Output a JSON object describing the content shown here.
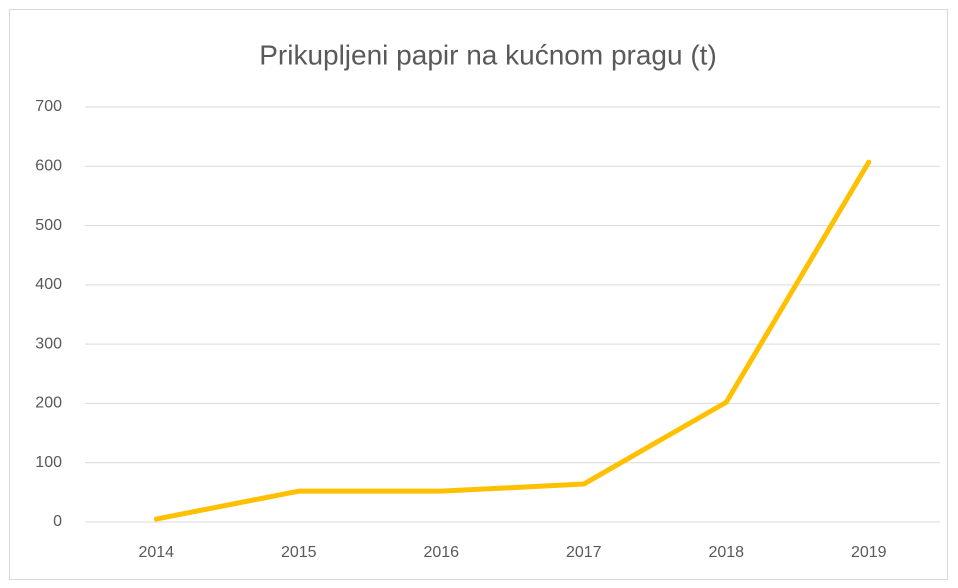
{
  "chart_data": {
    "type": "line",
    "title": "Prikupljeni papir na kućnom pragu (t)",
    "categories": [
      "2014",
      "2015",
      "2016",
      "2017",
      "2018",
      "2019"
    ],
    "values": [
      5,
      52,
      52,
      64,
      202,
      607
    ],
    "color": "#ffc000",
    "ylim": [
      0,
      700
    ],
    "yticks": [
      0,
      100,
      200,
      300,
      400,
      500,
      600,
      700
    ],
    "grid": true
  }
}
